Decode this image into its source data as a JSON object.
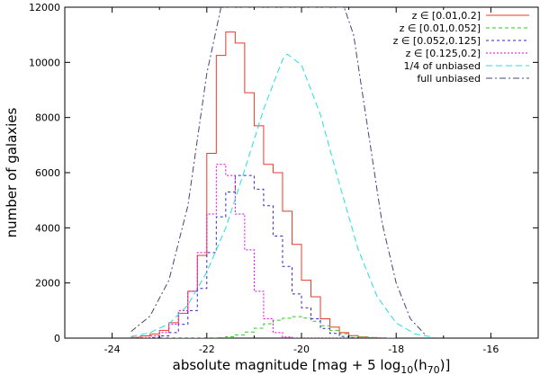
{
  "chart_data": {
    "type": "line",
    "xlabel_main": "absolute magnitude [mag + 5 log",
    "xlabel_sub": "10",
    "xlabel_tail": "(h",
    "xlabel_sub2": "70",
    "xlabel_end": ")]",
    "ylabel": "number of galaxies",
    "xlim": [
      -25,
      -15
    ],
    "ylim": [
      0,
      12000
    ],
    "x_ticks": [
      -24,
      -22,
      -20,
      -18,
      -16
    ],
    "x_tick_labels": [
      "-24",
      "-22",
      "-20",
      "-18",
      "-16"
    ],
    "y_ticks": [
      0,
      2000,
      4000,
      6000,
      8000,
      10000,
      12000
    ],
    "y_tick_labels": [
      "0",
      "2000",
      "4000",
      "6000",
      "8000",
      "10000",
      "12000"
    ],
    "legend_position": "top-right",
    "bin_edges": [
      -23.6,
      -23.4,
      -23.2,
      -23.0,
      -22.8,
      -22.6,
      -22.4,
      -22.2,
      -22.0,
      -21.8,
      -21.6,
      -21.4,
      -21.2,
      -21.0,
      -20.8,
      -20.6,
      -20.4,
      -20.2,
      -20.0,
      -19.8,
      -19.6,
      -19.4,
      -19.2,
      -19.0,
      -18.8,
      -18.6,
      -18.4,
      -18.2,
      -18.0
    ],
    "series": [
      {
        "name": "z ∈ [0.01,0.2]",
        "color": "#e8382c",
        "dash": "",
        "kind": "step",
        "values": [
          30,
          80,
          150,
          280,
          560,
          900,
          1700,
          3000,
          6700,
          10250,
          11100,
          10700,
          8900,
          7700,
          6300,
          6000,
          4600,
          3400,
          2100,
          1500,
          700,
          400,
          200,
          90,
          40,
          20,
          10,
          0
        ]
      },
      {
        "name": "z ∈ [0.01,0.052]",
        "color": "#33c622",
        "dash": "4,3",
        "kind": "step",
        "values": [
          0,
          0,
          0,
          0,
          0,
          0,
          0,
          0,
          10,
          20,
          50,
          120,
          220,
          360,
          520,
          650,
          720,
          780,
          730,
          610,
          450,
          280,
          160,
          80,
          40,
          20,
          10,
          0
        ]
      },
      {
        "name": "z ∈ [0.052,0.125]",
        "color": "#3226c4",
        "dash": "3,3",
        "kind": "step",
        "values": [
          0,
          0,
          20,
          80,
          200,
          500,
          1000,
          1800,
          3100,
          4400,
          5300,
          5900,
          5900,
          5400,
          4800,
          3700,
          2600,
          1600,
          1100,
          700,
          350,
          170,
          60,
          20,
          0,
          0,
          0,
          0
        ]
      },
      {
        "name": "z ∈ [0.125,0.2]",
        "color": "#e000e0",
        "dash": "2,2",
        "kind": "step",
        "values": [
          0,
          20,
          80,
          200,
          500,
          1000,
          1700,
          3100,
          4500,
          6300,
          5900,
          4500,
          3200,
          1700,
          700,
          200,
          40,
          0,
          0,
          0,
          0,
          0,
          0,
          0,
          0,
          0,
          0,
          0
        ]
      },
      {
        "name": "1/4 of unbiased",
        "color": "#22e0e0",
        "dash": "7,4",
        "kind": "curve",
        "x": [
          -23.6,
          -23.2,
          -22.8,
          -22.4,
          -22.0,
          -21.6,
          -21.2,
          -20.8,
          -20.4,
          -20.3,
          -20.0,
          -19.6,
          -19.2,
          -18.8,
          -18.4,
          -18.0,
          -17.6,
          -17.2
        ],
        "values": [
          60,
          200,
          520,
          1200,
          2400,
          4000,
          6100,
          8300,
          10100,
          10300,
          9900,
          8100,
          5600,
          3200,
          1500,
          550,
          150,
          30
        ]
      },
      {
        "name": "full unbiased",
        "color": "#444477",
        "dash": "7,3,2,3",
        "kind": "curve",
        "x": [
          -23.6,
          -23.2,
          -22.8,
          -22.4,
          -22.0,
          -21.7,
          -21.5,
          -21.4,
          -19.2,
          -19.1,
          -18.9,
          -18.6,
          -18.3,
          -18.0,
          -17.7,
          -17.4
        ],
        "values": [
          240,
          800,
          2100,
          4800,
          9600,
          12000,
          12000,
          12000,
          12000,
          12000,
          11000,
          7600,
          4200,
          2000,
          700,
          150
        ]
      }
    ]
  }
}
